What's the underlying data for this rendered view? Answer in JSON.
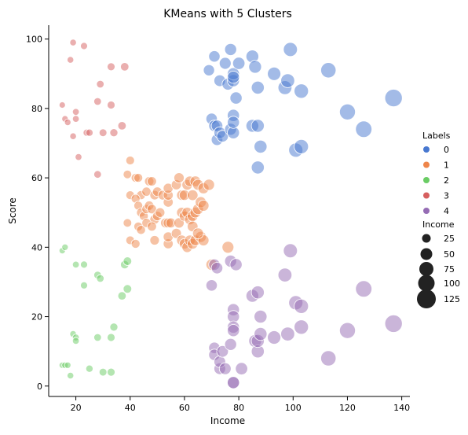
{
  "chart_data": {
    "type": "scatter",
    "title": "KMeans with 5 Clusters",
    "xlabel": "Income",
    "ylabel": "Score",
    "xlim": [
      10,
      143
    ],
    "ylim": [
      -3,
      104
    ],
    "x_ticks": [
      20,
      40,
      60,
      80,
      100,
      120,
      140
    ],
    "y_ticks": [
      0,
      20,
      40,
      60,
      80,
      100
    ],
    "grid": false,
    "legend_position": "right",
    "hue": {
      "title": "Labels",
      "entries": [
        {
          "label": "0",
          "color": "#4878d0"
        },
        {
          "label": "1",
          "color": "#ee854a"
        },
        {
          "label": "2",
          "color": "#6acc64"
        },
        {
          "label": "3",
          "color": "#d65f5f"
        },
        {
          "label": "4",
          "color": "#956cb4"
        }
      ]
    },
    "size": {
      "title": "Income",
      "entries": [
        "25",
        "50",
        "75",
        "100",
        "125"
      ],
      "values": [
        25,
        50,
        75,
        100,
        125
      ]
    },
    "series": [
      {
        "cluster": "0",
        "points": [
          [
            69,
            91
          ],
          [
            71,
            95
          ],
          [
            73,
            88
          ],
          [
            75,
            93
          ],
          [
            76,
            87
          ],
          [
            77,
            97
          ],
          [
            78,
            88
          ],
          [
            78,
            90
          ],
          [
            78,
            89
          ],
          [
            79,
            83
          ],
          [
            80,
            93
          ],
          [
            85,
            95
          ],
          [
            86,
            92
          ],
          [
            87,
            86
          ],
          [
            93,
            90
          ],
          [
            97,
            86
          ],
          [
            98,
            88
          ],
          [
            99,
            97
          ],
          [
            103,
            85
          ],
          [
            113,
            91
          ],
          [
            70,
            77
          ],
          [
            71,
            75
          ],
          [
            72,
            75
          ],
          [
            72,
            71
          ],
          [
            73,
            73
          ],
          [
            74,
            72
          ],
          [
            77,
            74
          ],
          [
            78,
            78
          ],
          [
            78,
            73
          ],
          [
            78,
            76
          ],
          [
            85,
            75
          ],
          [
            87,
            75
          ],
          [
            88,
            69
          ],
          [
            87,
            63
          ],
          [
            101,
            68
          ],
          [
            103,
            69
          ],
          [
            120,
            79
          ],
          [
            126,
            74
          ],
          [
            137,
            83
          ]
        ]
      },
      {
        "cluster": "1",
        "points": [
          [
            39,
            61
          ],
          [
            40,
            65
          ],
          [
            42,
            60
          ],
          [
            43,
            60
          ],
          [
            44,
            55
          ],
          [
            46,
            56
          ],
          [
            47,
            59
          ],
          [
            48,
            59
          ],
          [
            49,
            55
          ],
          [
            50,
            56
          ],
          [
            52,
            55
          ],
          [
            54,
            53
          ],
          [
            54,
            55
          ],
          [
            54,
            57
          ],
          [
            57,
            58
          ],
          [
            58,
            60
          ],
          [
            59,
            55
          ],
          [
            60,
            55
          ],
          [
            61,
            58
          ],
          [
            62,
            59
          ],
          [
            63,
            55
          ],
          [
            64,
            59
          ],
          [
            65,
            58
          ],
          [
            67,
            57
          ],
          [
            69,
            58
          ],
          [
            40,
            55
          ],
          [
            42,
            54
          ],
          [
            43,
            52
          ],
          [
            44,
            50
          ],
          [
            45,
            49
          ],
          [
            46,
            51
          ],
          [
            47,
            52
          ],
          [
            48,
            51
          ],
          [
            49,
            48
          ],
          [
            50,
            49
          ],
          [
            51,
            50
          ],
          [
            53,
            47
          ],
          [
            54,
            47
          ],
          [
            55,
            47
          ],
          [
            58,
            47
          ],
          [
            59,
            50
          ],
          [
            60,
            49
          ],
          [
            61,
            50
          ],
          [
            62,
            48
          ],
          [
            63,
            49
          ],
          [
            64,
            50
          ],
          [
            65,
            51
          ],
          [
            66,
            53
          ],
          [
            67,
            52
          ],
          [
            39,
            47
          ],
          [
            40,
            42
          ],
          [
            42,
            41
          ],
          [
            43,
            46
          ],
          [
            44,
            45
          ],
          [
            46,
            47
          ],
          [
            48,
            46
          ],
          [
            49,
            42
          ],
          [
            54,
            41
          ],
          [
            54,
            43
          ],
          [
            57,
            44
          ],
          [
            59,
            42
          ],
          [
            60,
            41
          ],
          [
            61,
            40
          ],
          [
            62,
            42
          ],
          [
            63,
            41
          ],
          [
            64,
            42
          ],
          [
            66,
            43
          ],
          [
            67,
            42
          ],
          [
            63,
            46
          ],
          [
            65,
            44
          ],
          [
            76,
            40
          ],
          [
            70,
            35
          ]
        ]
      },
      {
        "cluster": "2",
        "points": [
          [
            15,
            39
          ],
          [
            16,
            40
          ],
          [
            20,
            35
          ],
          [
            23,
            35
          ],
          [
            28,
            32
          ],
          [
            29,
            31
          ],
          [
            23,
            29
          ],
          [
            38,
            35
          ],
          [
            39,
            36
          ],
          [
            37,
            26
          ],
          [
            39,
            28
          ],
          [
            19,
            15
          ],
          [
            20,
            14
          ],
          [
            20,
            13
          ],
          [
            28,
            14
          ],
          [
            33,
            14
          ],
          [
            34,
            17
          ],
          [
            15,
            6
          ],
          [
            16,
            6
          ],
          [
            17,
            6
          ],
          [
            18,
            3
          ],
          [
            25,
            5
          ],
          [
            30,
            4
          ],
          [
            33,
            4
          ]
        ]
      },
      {
        "cluster": "3",
        "points": [
          [
            19,
            99
          ],
          [
            23,
            98
          ],
          [
            18,
            94
          ],
          [
            33,
            92
          ],
          [
            38,
            92
          ],
          [
            29,
            87
          ],
          [
            28,
            82
          ],
          [
            33,
            81
          ],
          [
            15,
            81
          ],
          [
            20,
            79
          ],
          [
            16,
            77
          ],
          [
            17,
            76
          ],
          [
            20,
            77
          ],
          [
            24,
            73
          ],
          [
            25,
            73
          ],
          [
            30,
            73
          ],
          [
            34,
            73
          ],
          [
            37,
            75
          ],
          [
            19,
            72
          ],
          [
            21,
            66
          ],
          [
            28,
            61
          ]
        ]
      },
      {
        "cluster": "4",
        "points": [
          [
            71,
            35
          ],
          [
            72,
            34
          ],
          [
            70,
            29
          ],
          [
            77,
            36
          ],
          [
            79,
            35
          ],
          [
            85,
            26
          ],
          [
            87,
            27
          ],
          [
            88,
            20
          ],
          [
            93,
            14
          ],
          [
            97,
            32
          ],
          [
            99,
            39
          ],
          [
            101,
            24
          ],
          [
            103,
            23
          ],
          [
            103,
            17
          ],
          [
            113,
            8
          ],
          [
            120,
            16
          ],
          [
            126,
            28
          ],
          [
            137,
            18
          ],
          [
            71,
            11
          ],
          [
            71,
            9
          ],
          [
            73,
            5
          ],
          [
            73,
            7
          ],
          [
            74,
            10
          ],
          [
            75,
            5
          ],
          [
            77,
            12
          ],
          [
            78,
            22
          ],
          [
            78,
            20
          ],
          [
            78,
            17
          ],
          [
            78,
            16
          ],
          [
            78,
            1
          ],
          [
            78,
            1
          ],
          [
            81,
            5
          ],
          [
            86,
            13
          ],
          [
            87,
            10
          ],
          [
            87,
            13
          ],
          [
            88,
            15
          ],
          [
            98,
            15
          ]
        ]
      }
    ]
  }
}
